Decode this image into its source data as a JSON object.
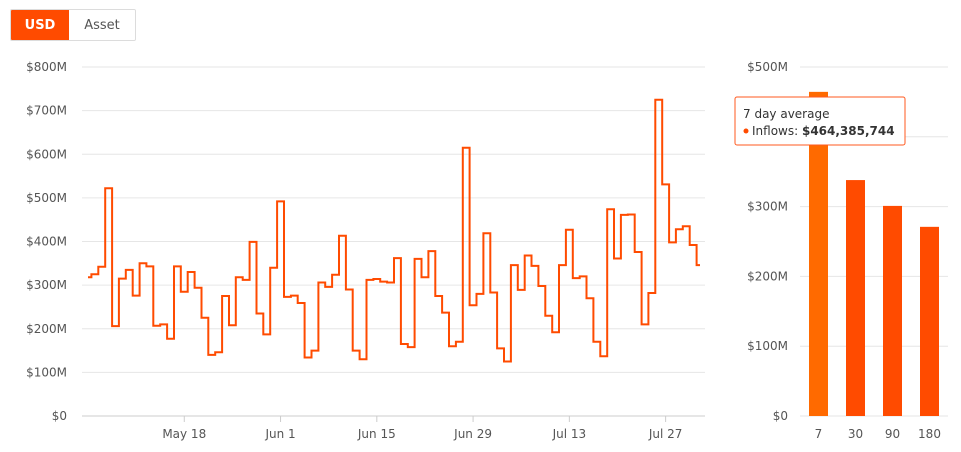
{
  "toggle": {
    "usd_label": "USD",
    "asset_label": "Asset",
    "active": "USD"
  },
  "colors": {
    "line": "#ff4b00",
    "bar": "#ff4b00",
    "bar_highlight": "#ff6a00",
    "grid": "#e6e6e6",
    "axis_text": "#555555",
    "tooltip_border": "#ff5a1f"
  },
  "tooltip": {
    "title": "7 day average",
    "series_label": "Inflows: ",
    "value": "$464,385,744"
  },
  "chart_data": [
    {
      "type": "line",
      "step": true,
      "ylim": [
        0,
        800000000
      ],
      "y_ticks": [
        "$0",
        "$100M",
        "$200M",
        "$300M",
        "$400M",
        "$500M",
        "$600M",
        "$700M",
        "$800M"
      ],
      "x_ticks": [
        "May 18",
        "Jun 1",
        "Jun 15",
        "Jun 29",
        "Jul 13",
        "Jul 27"
      ],
      "x_start": "2020-05-04",
      "values": [
        318,
        325,
        342,
        522,
        206,
        315,
        335,
        276,
        350,
        343,
        207,
        210,
        177,
        343,
        285,
        330,
        294,
        225,
        140,
        146,
        275,
        208,
        318,
        312,
        399,
        235,
        187,
        340,
        492,
        273,
        276,
        259,
        134,
        150,
        306,
        296,
        324,
        413,
        290,
        150,
        130,
        312,
        314,
        308,
        306,
        362,
        165,
        158,
        360,
        318,
        378,
        275,
        237,
        160,
        170,
        615,
        254,
        280,
        419,
        283,
        155,
        125,
        346,
        289,
        368,
        344,
        298,
        230,
        192,
        346,
        427,
        316,
        320,
        270,
        170,
        137,
        474,
        361,
        461,
        462,
        376,
        210,
        282,
        725,
        531,
        398,
        428,
        435,
        392,
        346
      ]
    },
    {
      "type": "bar",
      "categories": [
        "7",
        "30",
        "90",
        "180"
      ],
      "values": [
        464385744,
        338000000,
        301000000,
        271000000
      ],
      "ylim": [
        0,
        500000000
      ],
      "y_ticks": [
        "$0",
        "$100M",
        "$200M",
        "$300M",
        "$400M",
        "$500M"
      ],
      "highlighted": "7"
    }
  ]
}
